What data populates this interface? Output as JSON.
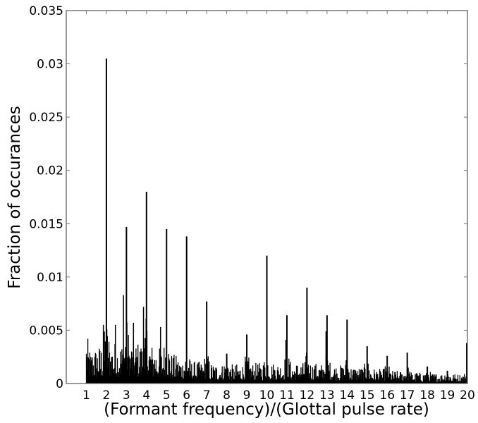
{
  "chart_data": {
    "type": "bar",
    "title": "",
    "xlabel": "(Formant frequency)/(Glottal pulse rate)",
    "ylabel": "Fraction of occurances",
    "xlim": [
      0,
      20
    ],
    "ylim": [
      0,
      0.035
    ],
    "grid": false,
    "legend": null,
    "x_ticks": [
      1,
      2,
      3,
      4,
      5,
      6,
      7,
      8,
      9,
      10,
      11,
      12,
      13,
      14,
      15,
      16,
      17,
      18,
      19,
      20
    ],
    "x_tick_labels": [
      "1",
      "2",
      "3",
      "4",
      "5",
      "6",
      "7",
      "8",
      "9",
      "10",
      "11",
      "12",
      "13",
      "14",
      "15",
      "16",
      "17",
      "18",
      "19",
      "20"
    ],
    "y_ticks": [
      0,
      0.005,
      0.01,
      0.015,
      0.02,
      0.025,
      0.03,
      0.035
    ],
    "y_tick_labels": [
      "0",
      "0.005",
      "0.01",
      "0.015",
      "0.02",
      "0.025",
      "0.03",
      "0.035"
    ],
    "description": "Dense histogram (bin width ~0.05) of formant/glottal-pulse ratios from 1 to 20, with tall spikes at integer harmonics.",
    "bar_color": "#000000",
    "peaks": [
      {
        "x": 2,
        "y": 0.0305
      },
      {
        "x": 3,
        "y": 0.0147
      },
      {
        "x": 4,
        "y": 0.018
      },
      {
        "x": 5,
        "y": 0.0145
      },
      {
        "x": 6,
        "y": 0.0138
      },
      {
        "x": 7,
        "y": 0.0077
      },
      {
        "x": 8,
        "y": 0.0028
      },
      {
        "x": 9,
        "y": 0.0046
      },
      {
        "x": 10,
        "y": 0.012
      },
      {
        "x": 11,
        "y": 0.0064
      },
      {
        "x": 12,
        "y": 0.009
      },
      {
        "x": 13,
        "y": 0.0064
      },
      {
        "x": 14,
        "y": 0.006
      },
      {
        "x": 15,
        "y": 0.0035
      },
      {
        "x": 16,
        "y": 0.0026
      },
      {
        "x": 17,
        "y": 0.0029
      },
      {
        "x": 18,
        "y": 0.0016
      },
      {
        "x": 19,
        "y": 0.0012
      },
      {
        "x": 20,
        "y": 0.0038
      }
    ],
    "secondary_peaks": [
      {
        "x": 2.85,
        "y": 0.0083
      },
      {
        "x": 3.85,
        "y": 0.0072
      },
      {
        "x": 1.85,
        "y": 0.0055
      },
      {
        "x": 4.7,
        "y": 0.0053
      },
      {
        "x": 12.95,
        "y": 0.0049
      },
      {
        "x": 10.95,
        "y": 0.0041
      },
      {
        "x": 3.35,
        "y": 0.0057
      },
      {
        "x": 2.45,
        "y": 0.0055
      }
    ],
    "background_envelope": [
      {
        "x": 1.0,
        "y": 0.003
      },
      {
        "x": 2.0,
        "y": 0.004
      },
      {
        "x": 4.0,
        "y": 0.004
      },
      {
        "x": 6.0,
        "y": 0.0022
      },
      {
        "x": 8.0,
        "y": 0.0018
      },
      {
        "x": 10.0,
        "y": 0.002
      },
      {
        "x": 12.0,
        "y": 0.002
      },
      {
        "x": 14.0,
        "y": 0.0017
      },
      {
        "x": 16.0,
        "y": 0.0013
      },
      {
        "x": 18.0,
        "y": 0.001
      },
      {
        "x": 20.0,
        "y": 0.0009
      }
    ],
    "bin_width": 0.05,
    "x_start": 1.0
  }
}
